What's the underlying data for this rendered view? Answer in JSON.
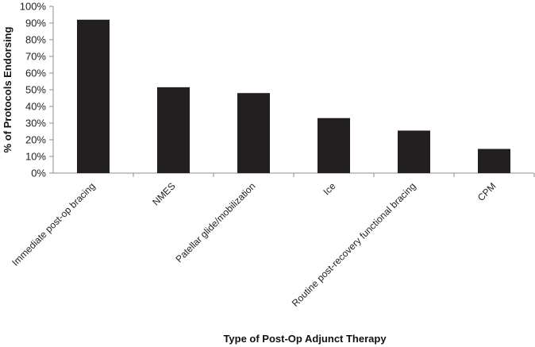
{
  "chart_data": {
    "type": "bar",
    "categories": [
      "Immediate post-op bracing",
      "NMES",
      "Patellar glide/mobilization",
      "Ice",
      "Routine post-recovery functional bracing",
      "CPM"
    ],
    "values": [
      92,
      51.5,
      48,
      33,
      25.5,
      14.5
    ],
    "xlabel": "Type of Post-Op Adjunct Therapy",
    "ylabel": "% of Protocols Endorsing",
    "ylim": [
      0,
      100
    ],
    "yticks": [
      0,
      10,
      20,
      30,
      40,
      50,
      60,
      70,
      80,
      90,
      100
    ],
    "ytick_suffix": "%",
    "grid": false,
    "legend": "none",
    "bar_color": "#231f20",
    "axis_color": "#8c8c8c"
  }
}
